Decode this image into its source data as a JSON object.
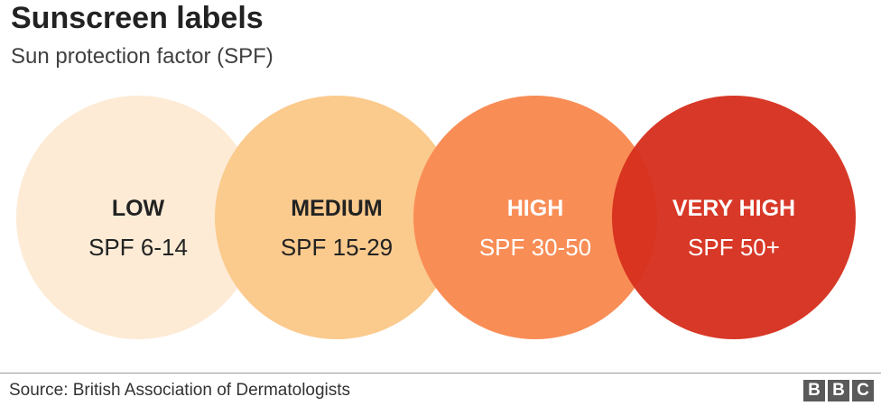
{
  "header": {
    "title": "Sunscreen labels",
    "subtitle": "Sun protection factor (SPF)"
  },
  "levels": [
    {
      "label": "LOW",
      "range": "SPF 6-14",
      "color": "#fdebd6",
      "text_color": "#222222"
    },
    {
      "label": "MEDIUM",
      "range": "SPF 15-29",
      "color": "#fbca8d",
      "text_color": "#222222"
    },
    {
      "label": "HIGH",
      "range": "SPF 30-50",
      "color": "#f98d56",
      "text_color": "#ffffff"
    },
    {
      "label": "VERY HIGH",
      "range": "SPF 50+",
      "color": "#d6301e",
      "text_color": "#ffffff"
    }
  ],
  "footer": {
    "source": "Source: British Association of Dermatologists",
    "logo_letters": [
      "B",
      "B",
      "C"
    ]
  }
}
